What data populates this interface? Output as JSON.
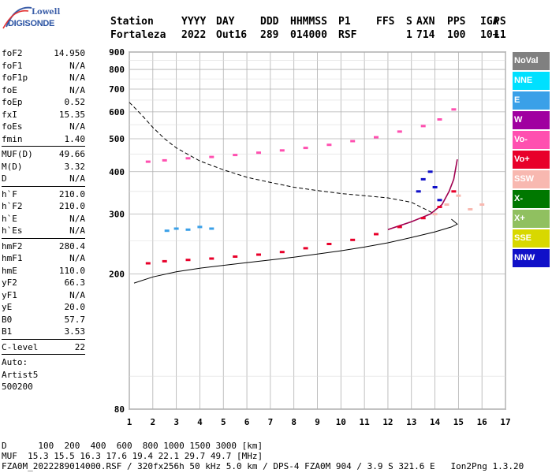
{
  "logo": {
    "line1": "Lowell",
    "line2": "DIGISONDE"
  },
  "header": {
    "labels": [
      "Station",
      "YYYY",
      "DAY",
      "DDD",
      "HHMMSS",
      "P1",
      "FFS",
      "S",
      "AXN",
      "PPS",
      "IGA",
      "PS"
    ],
    "values": [
      "Fortaleza",
      "2022",
      "Out16",
      "289",
      "014000",
      "RSF",
      "",
      "1",
      "714",
      "100",
      "10+",
      "11"
    ]
  },
  "params": {
    "group1": [
      {
        "k": "foF2",
        "v": "14.950"
      },
      {
        "k": "foF1",
        "v": "N/A"
      },
      {
        "k": "foF1p",
        "v": "N/A"
      },
      {
        "k": "foE",
        "v": "N/A"
      },
      {
        "k": "foEp",
        "v": "0.52"
      },
      {
        "k": "fxI",
        "v": "15.35"
      },
      {
        "k": "foEs",
        "v": "N/A"
      },
      {
        "k": "fmin",
        "v": "1.40"
      }
    ],
    "group2": [
      {
        "k": "MUF(D)",
        "v": "49.66"
      },
      {
        "k": "M(D)",
        "v": "3.32"
      },
      {
        "k": "D",
        "v": "N/A"
      }
    ],
    "group3": [
      {
        "k": "h`F",
        "v": "210.0"
      },
      {
        "k": "h`F2",
        "v": "210.0"
      },
      {
        "k": "h`E",
        "v": "N/A"
      },
      {
        "k": "h`Es",
        "v": "N/A"
      }
    ],
    "group4": [
      {
        "k": "hmF2",
        "v": "280.4"
      },
      {
        "k": "hmF1",
        "v": "N/A"
      },
      {
        "k": "hmE",
        "v": "110.0"
      },
      {
        "k": "yF2",
        "v": "66.3"
      },
      {
        "k": "yF1",
        "v": "N/A"
      },
      {
        "k": "yE",
        "v": "20.0"
      },
      {
        "k": "B0",
        "v": "57.7"
      },
      {
        "k": "B1",
        "v": "3.53"
      }
    ],
    "group5": [
      {
        "k": "C-level",
        "v": "22"
      }
    ],
    "auto": [
      "Auto:",
      "Artist5",
      "500200"
    ]
  },
  "legend": [
    {
      "label": "NoVal",
      "bg": "#808080",
      "fg": "#ffffff"
    },
    {
      "label": "NNE",
      "bg": "#00e0ff",
      "fg": "#ffffff"
    },
    {
      "label": "E",
      "bg": "#3aa0e8",
      "fg": "#ffffff"
    },
    {
      "label": "W",
      "bg": "#a000a0",
      "fg": "#ffffff"
    },
    {
      "label": "Vo-",
      "bg": "#ff50b0",
      "fg": "#ffffff"
    },
    {
      "label": "Vo+",
      "bg": "#e8002a",
      "fg": "#ffffff"
    },
    {
      "label": "SSW",
      "bg": "#f8b8b0",
      "fg": "#ffffff"
    },
    {
      "label": "X-",
      "bg": "#007800",
      "fg": "#ffffff"
    },
    {
      "label": "X+",
      "bg": "#90c060",
      "fg": "#ffffff"
    },
    {
      "label": "SSE",
      "bg": "#d8d800",
      "fg": "#ffffff"
    },
    {
      "label": "NNW",
      "bg": "#1010c8",
      "fg": "#ffffff"
    }
  ],
  "footer": {
    "line1": "D      100  200  400  600  800 1000 1500 3000 [km]",
    "line2": "MUF  15.3 15.5 16.3 17.6 19.4 22.1 29.7 49.7 [MHz]",
    "line3": "FZA0M_2022289014000.RSF / 320fx256h 50 kHz 5.0 km / DPS-4 FZA0M 904 / 3.9 S 321.6 E   Ion2Png 1.3.20"
  },
  "chart_data": {
    "type": "scatter",
    "xlim": [
      1,
      17
    ],
    "ylim": [
      80,
      900
    ],
    "x_ticks": [
      "1",
      "2",
      "3",
      "4",
      "5",
      "6",
      "7",
      "8",
      "9",
      "10",
      "11",
      "12",
      "13",
      "14",
      "15",
      "16",
      "17"
    ],
    "y_ticks": [
      "80",
      "200",
      "300",
      "400",
      "500",
      "600",
      "700",
      "800",
      "900"
    ],
    "y_scale": "log",
    "grid": true,
    "series": [
      {
        "name": "Vo+",
        "color": "#e8002a",
        "x": [
          1.8,
          2.5,
          3.5,
          4.5,
          5.5,
          6.5,
          7.5,
          8.5,
          9.5,
          10.5,
          11.5,
          12.5,
          13.5,
          14.2,
          14.8
        ],
        "y": [
          215,
          218,
          220,
          222,
          225,
          228,
          232,
          238,
          245,
          252,
          262,
          275,
          292,
          315,
          350
        ]
      },
      {
        "name": "Vo-",
        "color": "#ff50b0",
        "x": [
          1.8,
          2.5,
          3.5,
          4.5,
          5.5,
          6.5,
          7.5,
          8.5,
          9.5,
          10.5,
          11.5,
          12.5,
          13.5,
          14.2,
          14.8
        ],
        "y": [
          428,
          432,
          438,
          442,
          448,
          455,
          462,
          470,
          480,
          492,
          505,
          525,
          545,
          570,
          610
        ]
      },
      {
        "name": "E",
        "color": "#3aa0e8",
        "x": [
          2.6,
          3.0,
          3.5,
          4.0,
          4.5
        ],
        "y": [
          268,
          272,
          270,
          275,
          272
        ]
      },
      {
        "name": "NNW",
        "color": "#1010c8",
        "x": [
          13.3,
          13.5,
          13.8,
          14.0,
          14.2
        ],
        "y": [
          350,
          380,
          400,
          360,
          330
        ]
      },
      {
        "name": "SSW",
        "color": "#f8b8b0",
        "x": [
          14.0,
          14.5,
          15.0,
          15.5,
          16.0
        ],
        "y": [
          300,
          320,
          340,
          310,
          320
        ]
      }
    ],
    "curves": [
      {
        "name": "Profile",
        "style": "solid",
        "x": [
          1.2,
          2,
          3,
          4,
          5,
          6,
          7,
          8,
          9,
          10,
          11,
          12,
          13,
          14,
          14.7,
          14.95,
          14.7
        ],
        "y": [
          188,
          196,
          203,
          208,
          212,
          216,
          220,
          224,
          229,
          234,
          240,
          247,
          256,
          266,
          275,
          280.4,
          290
        ]
      },
      {
        "name": "Trace",
        "style": "dashed",
        "x": [
          1.0,
          1.5,
          2.0,
          2.5,
          3.0,
          4.0,
          5.0,
          6.0,
          7.0,
          8.0,
          9.0,
          10.0,
          11.0,
          12.0,
          13.0,
          14.0
        ],
        "y": [
          640,
          590,
          540,
          500,
          470,
          430,
          405,
          385,
          372,
          360,
          352,
          345,
          340,
          335,
          325,
          300
        ]
      },
      {
        "name": "Fit",
        "style": "solid",
        "x": [
          12.0,
          13.0,
          13.8,
          14.3,
          14.6,
          14.8,
          14.95
        ],
        "y": [
          270,
          285,
          300,
          320,
          350,
          380,
          435
        ]
      }
    ]
  }
}
